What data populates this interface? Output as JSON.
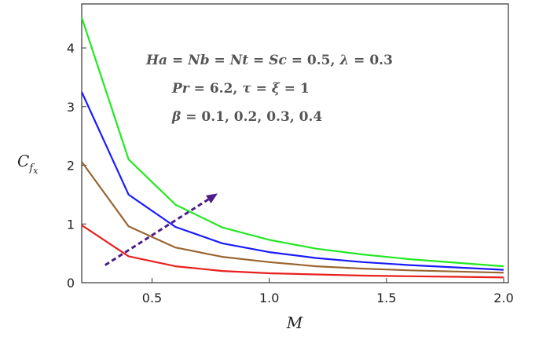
{
  "chart_data": {
    "type": "line",
    "xlabel": "M",
    "ylabel": "C",
    "ylabel_sub": "f",
    "ylabel_subsub": "x",
    "xlim": [
      0.2,
      2.02
    ],
    "ylim": [
      0,
      4.75
    ],
    "x_ticks": [
      {
        "value": 0.5,
        "label": "0.5"
      },
      {
        "value": 1.0,
        "label": "1.0"
      },
      {
        "value": 1.5,
        "label": "1.5"
      },
      {
        "value": 2.0,
        "label": "2.0"
      }
    ],
    "y_ticks": [
      {
        "value": 0,
        "label": "0"
      },
      {
        "value": 1,
        "label": "1"
      },
      {
        "value": 2,
        "label": "2"
      },
      {
        "value": 3,
        "label": "3"
      },
      {
        "value": 4,
        "label": "4"
      }
    ],
    "x": [
      0.2,
      0.4,
      0.6,
      0.8,
      1.0,
      1.2,
      1.4,
      1.6,
      1.8,
      2.0
    ],
    "series": [
      {
        "color": "#e8201d",
        "values": [
          0.98,
          0.45,
          0.28,
          0.2,
          0.16,
          0.14,
          0.12,
          0.11,
          0.1,
          0.09
        ]
      },
      {
        "color": "#9a6530",
        "values": [
          2.06,
          0.96,
          0.6,
          0.44,
          0.35,
          0.28,
          0.24,
          0.21,
          0.19,
          0.17
        ]
      },
      {
        "color": "#1a1aff",
        "values": [
          3.25,
          1.5,
          0.95,
          0.67,
          0.52,
          0.42,
          0.35,
          0.3,
          0.26,
          0.22
        ]
      },
      {
        "color": "#22e822",
        "values": [
          4.52,
          2.1,
          1.33,
          0.94,
          0.73,
          0.58,
          0.48,
          0.4,
          0.34,
          0.28
        ]
      }
    ],
    "arrow": {
      "from": [
        0.3,
        0.3
      ],
      "to": [
        0.78,
        1.52
      ],
      "color": "#4b1d8a"
    },
    "annotations": [
      {
        "id": "line1",
        "parts": [
          {
            "t": "Ha",
            "i": true
          },
          {
            "t": " = ",
            "i": false
          },
          {
            "t": "Nb",
            "i": true
          },
          {
            "t": " = ",
            "i": false
          },
          {
            "t": "Nt",
            "i": true
          },
          {
            "t": " = ",
            "i": false
          },
          {
            "t": "Sc",
            "i": true
          },
          {
            "t": " = 0.5, ",
            "i": false
          },
          {
            "t": "λ",
            "i": true
          },
          {
            "t": " = 0.3",
            "i": false
          }
        ]
      },
      {
        "id": "line2",
        "parts": [
          {
            "t": "Pr",
            "i": true
          },
          {
            "t": " = 6.2, ",
            "i": false
          },
          {
            "t": "τ",
            "i": true
          },
          {
            "t": " = ",
            "i": false
          },
          {
            "t": "ξ",
            "i": true
          },
          {
            "t": " = 1",
            "i": false
          }
        ]
      },
      {
        "id": "line3",
        "parts": [
          {
            "t": "β",
            "i": true
          },
          {
            "t": " = 0.1, 0.2, 0.3, 0.4",
            "i": false
          }
        ]
      }
    ]
  }
}
